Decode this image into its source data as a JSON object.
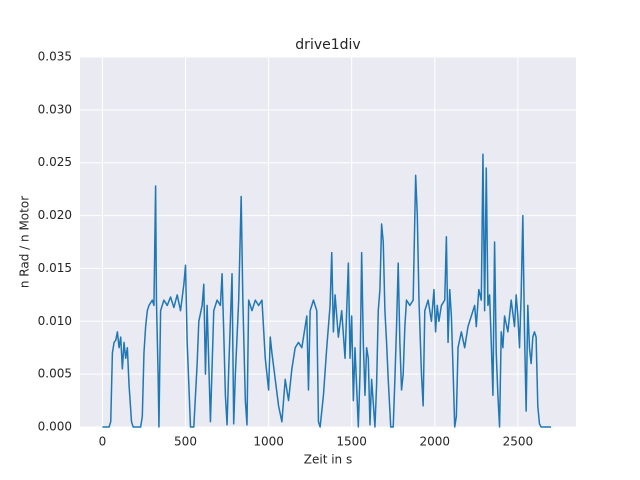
{
  "chart_data": {
    "type": "line",
    "title": "drive1div",
    "x_label": "Zeit in s",
    "y_label": "n Rad / n Motor",
    "x": [
      0,
      40,
      50,
      60,
      70,
      80,
      90,
      100,
      110,
      120,
      130,
      140,
      150,
      160,
      175,
      185,
      230,
      240,
      250,
      260,
      270,
      280,
      300,
      310,
      320,
      325,
      335,
      340,
      350,
      370,
      390,
      410,
      430,
      450,
      470,
      490,
      500,
      510,
      520,
      530,
      550,
      570,
      580,
      600,
      610,
      620,
      630,
      650,
      670,
      690,
      710,
      720,
      730,
      740,
      750,
      760,
      780,
      790,
      800,
      820,
      835,
      845,
      860,
      870,
      880,
      900,
      920,
      940,
      960,
      980,
      1000,
      1010,
      1020,
      1040,
      1060,
      1080,
      1100,
      1120,
      1140,
      1160,
      1180,
      1200,
      1220,
      1230,
      1240,
      1250,
      1270,
      1290,
      1300,
      1310,
      1330,
      1350,
      1370,
      1380,
      1390,
      1400,
      1420,
      1440,
      1460,
      1480,
      1490,
      1500,
      1510,
      1520,
      1540,
      1550,
      1560,
      1570,
      1580,
      1590,
      1600,
      1610,
      1620,
      1640,
      1650,
      1660,
      1670,
      1680,
      1690,
      1700,
      1710,
      1720,
      1735,
      1750,
      1760,
      1770,
      1780,
      1790,
      1800,
      1810,
      1820,
      1830,
      1850,
      1870,
      1885,
      1895,
      1905,
      1920,
      1930,
      1940,
      1960,
      1980,
      1995,
      2005,
      2015,
      2025,
      2040,
      2060,
      2070,
      2080,
      2090,
      2100,
      2110,
      2120,
      2130,
      2140,
      2160,
      2180,
      2200,
      2220,
      2240,
      2250,
      2265,
      2280,
      2290,
      2300,
      2310,
      2320,
      2330,
      2340,
      2350,
      2360,
      2370,
      2380,
      2390,
      2400,
      2410,
      2420,
      2440,
      2460,
      2480,
      2490,
      2500,
      2510,
      2520,
      2530,
      2540,
      2550,
      2560,
      2570,
      2580,
      2590,
      2600,
      2610,
      2620,
      2630,
      2640,
      2700
    ],
    "series": [
      {
        "name": "drive1div",
        "color": "#1f77b4",
        "values": [
          0,
          0,
          0.0005,
          0.007,
          0.008,
          0.0082,
          0.009,
          0.0075,
          0.0085,
          0.0055,
          0.008,
          0.0065,
          0.0075,
          0.004,
          0.0005,
          0,
          0,
          0.001,
          0.007,
          0.0095,
          0.011,
          0.0115,
          0.012,
          0.0115,
          0.0228,
          0.012,
          0.005,
          0,
          0.011,
          0.012,
          0.0115,
          0.0123,
          0.0113,
          0.0125,
          0.011,
          0.0135,
          0.0153,
          0.008,
          0.004,
          0,
          0,
          0.006,
          0.01,
          0.0115,
          0.0135,
          0.005,
          0.0115,
          0.0005,
          0.011,
          0.012,
          0.0115,
          0.0145,
          0.009,
          0.003,
          0.0002,
          0.0055,
          0.0145,
          0.0003,
          0.005,
          0.012,
          0.0218,
          0.012,
          0.0025,
          0.0002,
          0.012,
          0.011,
          0.012,
          0.0115,
          0.012,
          0.0065,
          0.0035,
          0.0085,
          0.007,
          0.0045,
          0.002,
          0.0005,
          0.0045,
          0.0025,
          0.0055,
          0.0075,
          0.008,
          0.0075,
          0.0095,
          0.0105,
          0.0035,
          0.011,
          0.012,
          0.011,
          0.0005,
          0,
          0.003,
          0.0075,
          0.0115,
          0.0165,
          0.009,
          0.0125,
          0.0085,
          0.011,
          0.0065,
          0.0155,
          0.0065,
          0.0105,
          0.0025,
          0.0075,
          0,
          0.005,
          0.0165,
          0.008,
          0.003,
          0.0075,
          0.0065,
          0.0002,
          0.0045,
          0,
          0.004,
          0.011,
          0.013,
          0.0192,
          0.0175,
          0.011,
          0.008,
          0.0045,
          0,
          0,
          0.0045,
          0.0095,
          0.0155,
          0.008,
          0.0035,
          0.005,
          0.0095,
          0.012,
          0.0115,
          0.012,
          0.0238,
          0.02,
          0.012,
          0.005,
          0.002,
          0.011,
          0.012,
          0.01,
          0.013,
          0.009,
          0.0115,
          0.01,
          0.0115,
          0.012,
          0.018,
          0.008,
          0.013,
          0.0105,
          0.0055,
          0,
          0.001,
          0.0075,
          0.009,
          0.0075,
          0.0095,
          0.0105,
          0.0115,
          0.0095,
          0.013,
          0.012,
          0.0258,
          0.011,
          0.0245,
          0.0115,
          0.0125,
          0.008,
          0.003,
          0.0175,
          0.007,
          0.003,
          0,
          0.009,
          0.0075,
          0.0105,
          0.009,
          0.012,
          0.0095,
          0.0125,
          0.0105,
          0.0075,
          0.0125,
          0.02,
          0.009,
          0.0015,
          0.0115,
          0.0075,
          0.006,
          0.0085,
          0.009,
          0.0085,
          0.002,
          0.0003,
          0,
          0
        ]
      }
    ],
    "xlim": [
      -135,
      2850
    ],
    "xticks": [
      0,
      500,
      1000,
      1500,
      2000,
      2500
    ],
    "ylim": [
      0,
      0.035
    ],
    "yticks": [
      {
        "value": 0,
        "label": "0.000"
      },
      {
        "value": 0.005,
        "label": "0.005"
      },
      {
        "value": 0.01,
        "label": "0.010"
      },
      {
        "value": 0.015,
        "label": "0.015"
      },
      {
        "value": 0.02,
        "label": "0.020"
      },
      {
        "value": 0.025,
        "label": "0.025"
      },
      {
        "value": 0.03,
        "label": "0.030"
      },
      {
        "value": 0.035,
        "label": "0.035"
      }
    ],
    "grid": true
  }
}
